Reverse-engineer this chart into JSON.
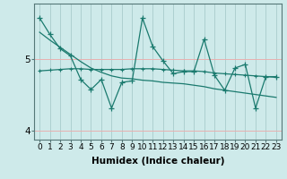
{
  "xlabel": "Humidex (Indice chaleur)",
  "bg_color": "#ceeaea",
  "line_color": "#1a7a6e",
  "vgrid_color": "#aed0d0",
  "hgrid_color": "#e8b0b0",
  "x_data": [
    0,
    1,
    2,
    3,
    4,
    5,
    6,
    7,
    8,
    9,
    10,
    11,
    12,
    13,
    14,
    15,
    16,
    17,
    18,
    19,
    20,
    21,
    22,
    23
  ],
  "y_main": [
    5.58,
    5.35,
    5.15,
    5.05,
    4.72,
    4.58,
    4.72,
    4.32,
    4.68,
    4.7,
    5.58,
    5.18,
    4.98,
    4.8,
    4.83,
    4.83,
    5.28,
    4.78,
    4.57,
    4.88,
    4.93,
    4.32,
    4.76,
    4.76
  ],
  "y_smooth": [
    4.84,
    4.85,
    4.86,
    4.87,
    4.87,
    4.86,
    4.86,
    4.86,
    4.86,
    4.87,
    4.87,
    4.87,
    4.86,
    4.85,
    4.84,
    4.84,
    4.83,
    4.81,
    4.8,
    4.79,
    4.78,
    4.77,
    4.76,
    4.75
  ],
  "y_trend": [
    5.38,
    5.27,
    5.17,
    5.07,
    4.97,
    4.88,
    4.82,
    4.77,
    4.74,
    4.73,
    4.71,
    4.7,
    4.68,
    4.67,
    4.66,
    4.64,
    4.62,
    4.59,
    4.57,
    4.55,
    4.53,
    4.51,
    4.49,
    4.47
  ],
  "ylim": [
    3.88,
    5.78
  ],
  "xlim": [
    -0.5,
    23.5
  ],
  "yticks": [
    4.0,
    5.0
  ],
  "ytick_labels": [
    "4",
    "5"
  ],
  "xticks": [
    0,
    1,
    2,
    3,
    4,
    5,
    6,
    7,
    8,
    9,
    10,
    11,
    12,
    13,
    14,
    15,
    16,
    17,
    18,
    19,
    20,
    21,
    22,
    23
  ],
  "marker_size": 4,
  "line_width": 0.9,
  "font_size": 7.5
}
